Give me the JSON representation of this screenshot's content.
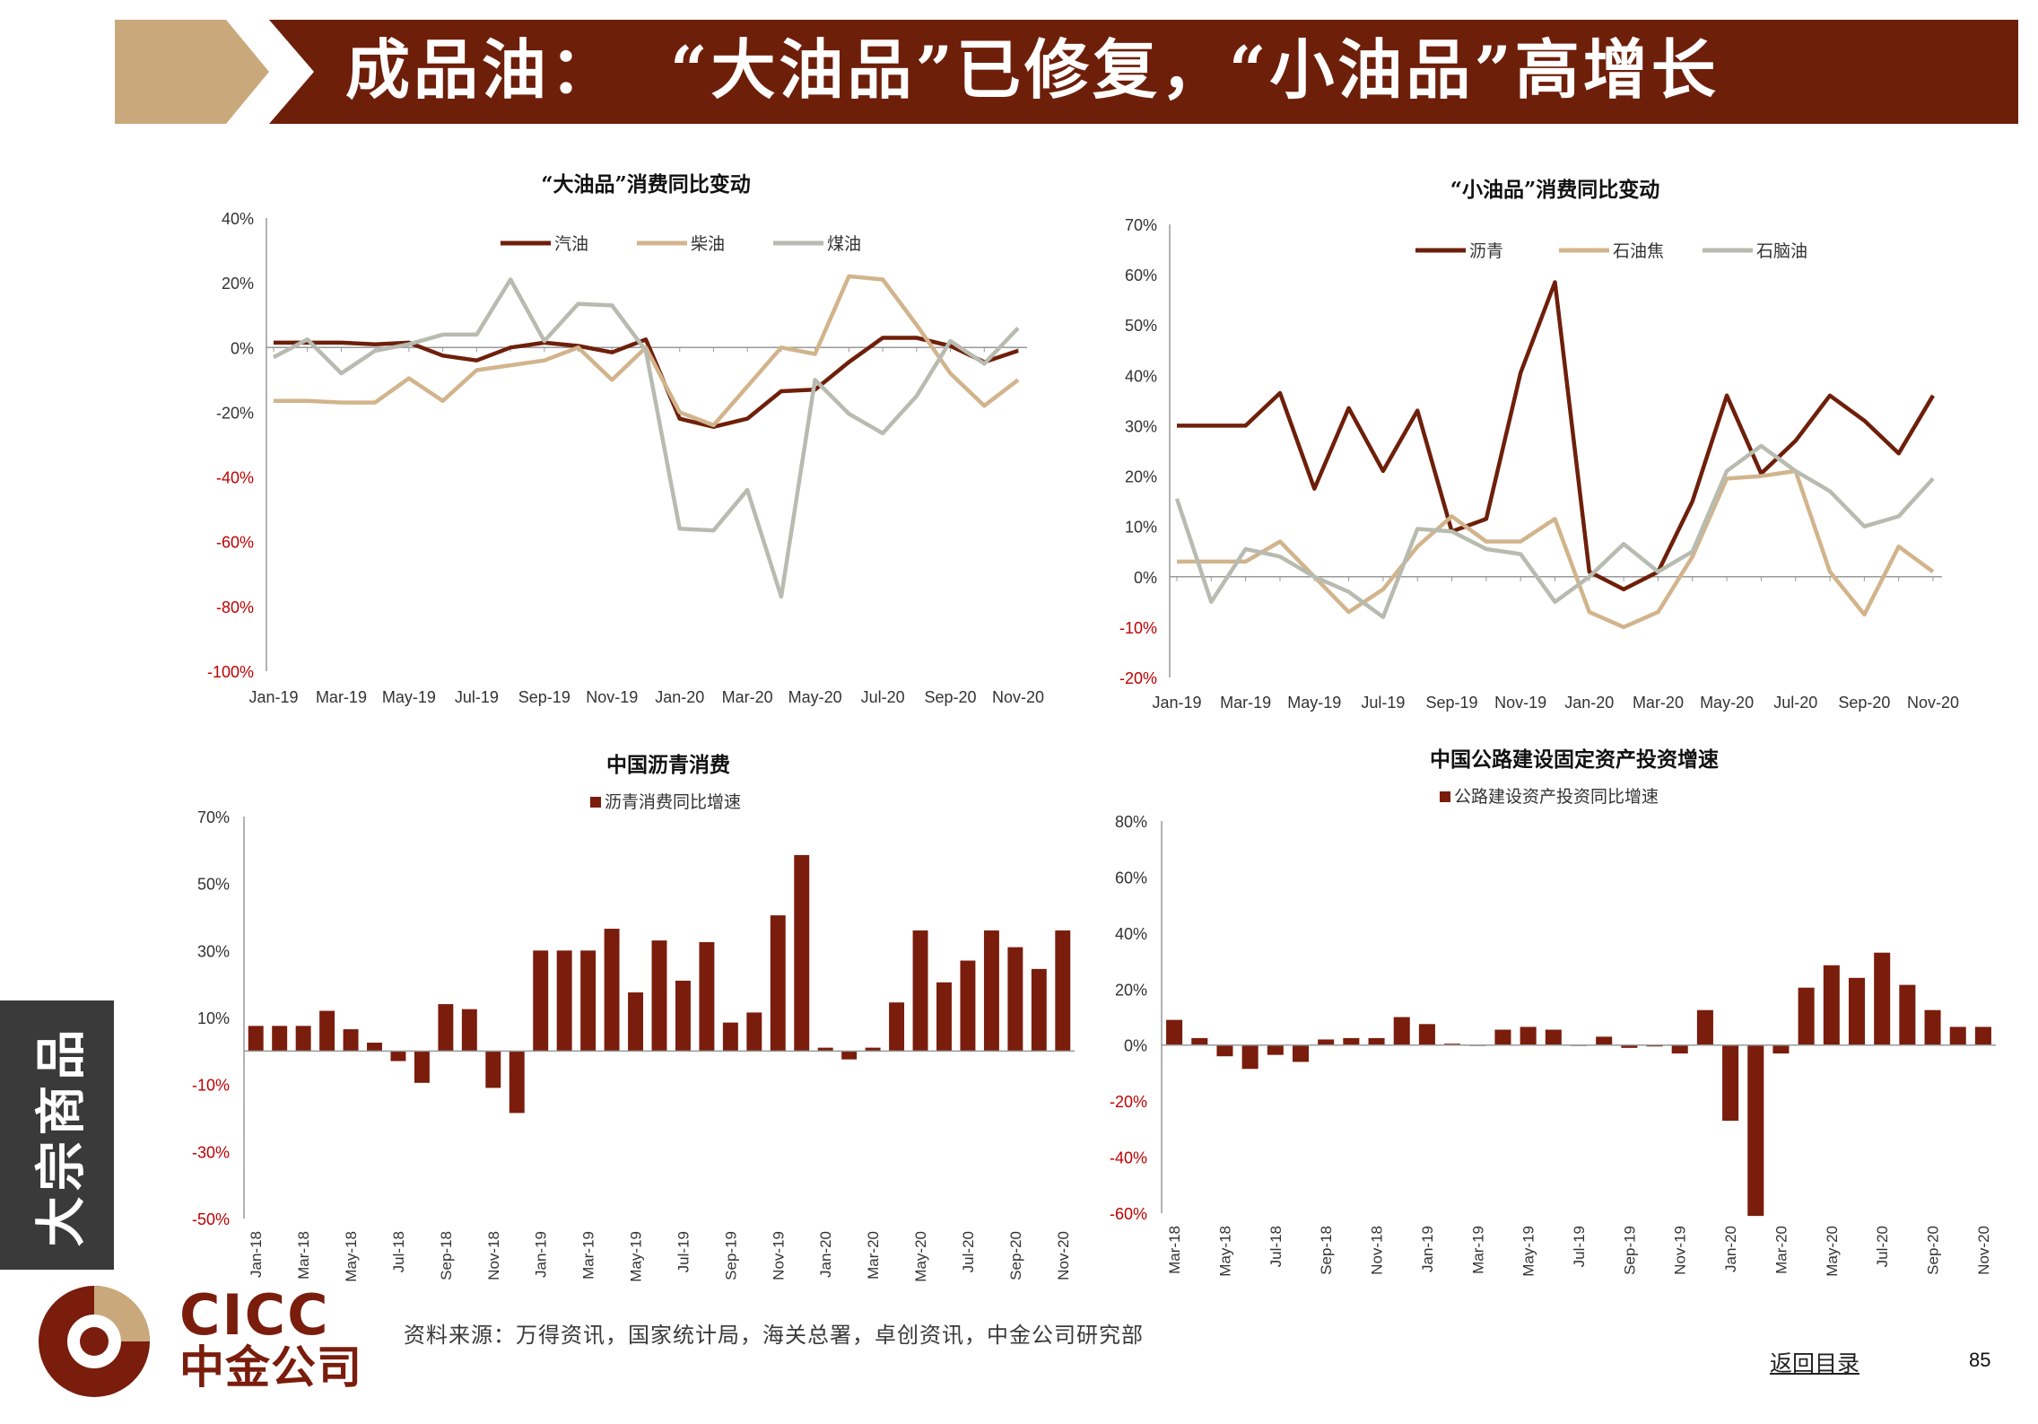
{
  "header": {
    "title": "成品油：  “大油品”已修复，“小油品”高增长"
  },
  "colors": {
    "banner": "#6e1f0a",
    "chevron": "#c9a97b",
    "gasoline": "#6e1f0a",
    "diesel": "#d2b48c",
    "jetfuel": "#b8bbb0",
    "bar": "#7a1d0d",
    "axis_red": "#c00000"
  },
  "side_tab": {
    "label": "大宗商品"
  },
  "footer": {
    "source": "资料来源：万得资讯，国家统计局，海关总署，卓创资讯，中金公司研究部",
    "back_link": "返回目录",
    "page_number": "85"
  },
  "logo": {
    "en": "CICC",
    "cn": "中金公司"
  },
  "chart_data": [
    {
      "type": "line",
      "title": "“大油品”消费同比变动",
      "xlabel": "",
      "ylabel": "",
      "ylim": [
        -100,
        40
      ],
      "yticks": [
        "40%",
        "20%",
        "0%",
        "-20%",
        "-40%",
        "-60%",
        "-80%",
        "-100%"
      ],
      "ytick_values": [
        40,
        20,
        0,
        -20,
        -40,
        -60,
        -80,
        -100
      ],
      "x": [
        "Jan-19",
        "Feb-19",
        "Mar-19",
        "Apr-19",
        "May-19",
        "Jun-19",
        "Jul-19",
        "Aug-19",
        "Sep-19",
        "Oct-19",
        "Nov-19",
        "Dec-19",
        "Jan-20",
        "Feb-20",
        "Mar-20",
        "Apr-20",
        "May-20",
        "Jun-20",
        "Jul-20",
        "Aug-20",
        "Sep-20",
        "Oct-20",
        "Nov-20"
      ],
      "xtick_labels": [
        "Jan-19",
        "Mar-19",
        "May-19",
        "Jul-19",
        "Sep-19",
        "Nov-19",
        "Jan-20",
        "Mar-20",
        "May-20",
        "Jul-20",
        "Sep-20",
        "Nov-20"
      ],
      "legend_position": "top",
      "grid": false,
      "series": [
        {
          "name": "汽油",
          "color": "#6e1f0a",
          "values": [
            1.5,
            1.5,
            1.5,
            1,
            1.5,
            -2.5,
            -4,
            0,
            1.5,
            0.5,
            -1.5,
            2.5,
            -22,
            -24.5,
            -22,
            -13.5,
            -13,
            -4.5,
            3,
            3,
            0.5,
            -4.5,
            -1
          ]
        },
        {
          "name": "柴油",
          "color": "#d2b48c",
          "values": [
            -16.5,
            -16.5,
            -17,
            -17,
            -9.5,
            -16.5,
            -7,
            -5.5,
            -4,
            0,
            -10,
            0,
            -20,
            -24,
            -12,
            0,
            -2,
            22,
            21,
            7,
            -8,
            -18,
            -10
          ]
        },
        {
          "name": "煤油",
          "color": "#b8bbb0",
          "values": [
            -3,
            2.5,
            -8,
            -1,
            1,
            4,
            4,
            21,
            2,
            13.5,
            13,
            -1,
            -56,
            -56.5,
            -44,
            -77,
            -10,
            -20.5,
            -26.5,
            -15,
            2,
            -5,
            6
          ]
        }
      ]
    },
    {
      "type": "line",
      "title": "“小油品”消费同比变动",
      "xlabel": "",
      "ylabel": "",
      "ylim": [
        -20,
        70
      ],
      "yticks": [
        "70%",
        "60%",
        "50%",
        "40%",
        "30%",
        "20%",
        "10%",
        "0%",
        "-10%",
        "-20%"
      ],
      "ytick_values": [
        70,
        60,
        50,
        40,
        30,
        20,
        10,
        0,
        -10,
        -20
      ],
      "x": [
        "Jan-19",
        "Feb-19",
        "Mar-19",
        "Apr-19",
        "May-19",
        "Jun-19",
        "Jul-19",
        "Aug-19",
        "Sep-19",
        "Oct-19",
        "Nov-19",
        "Dec-19",
        "Jan-20",
        "Feb-20",
        "Mar-20",
        "Apr-20",
        "May-20",
        "Jun-20",
        "Jul-20",
        "Aug-20",
        "Sep-20",
        "Oct-20",
        "Nov-20"
      ],
      "xtick_labels": [
        "Jan-19",
        "Mar-19",
        "May-19",
        "Jul-19",
        "Sep-19",
        "Nov-19",
        "Jan-20",
        "Mar-20",
        "May-20",
        "Jul-20",
        "Sep-20",
        "Nov-20"
      ],
      "legend_position": "top",
      "grid": false,
      "series": [
        {
          "name": "沥青",
          "color": "#6e1f0a",
          "values": [
            30,
            30,
            30,
            36.5,
            17.5,
            33.5,
            21,
            33,
            9,
            11.5,
            40.5,
            58.5,
            1,
            -2.5,
            1,
            15,
            36,
            20.5,
            27,
            36,
            31,
            24.5,
            36
          ]
        },
        {
          "name": "石油焦",
          "color": "#d2b48c",
          "values": [
            3,
            3,
            3,
            7,
            0,
            -7,
            -2.5,
            6,
            12,
            7,
            7,
            11.5,
            -7,
            -10,
            -7,
            4,
            19.5,
            20,
            21,
            1,
            -7.5,
            6,
            1
          ]
        },
        {
          "name": "石脑油",
          "color": "#b8bbb0",
          "values": [
            15.5,
            -5,
            5.5,
            4,
            0,
            -3,
            -8,
            9.5,
            9,
            5.5,
            4.5,
            -5,
            0,
            6.5,
            1,
            5,
            21,
            26,
            21,
            17,
            10,
            12,
            19.5
          ]
        }
      ]
    },
    {
      "type": "bar",
      "title": "中国沥青消费",
      "legend": "沥青消费同比增速",
      "xlabel": "",
      "ylabel": "",
      "ylim": [
        -50,
        70
      ],
      "yticks": [
        "70%",
        "50%",
        "30%",
        "10%",
        "-10%",
        "-30%",
        "-50%"
      ],
      "ytick_values": [
        70,
        50,
        30,
        10,
        -10,
        -30,
        -50
      ],
      "categories": [
        "Jan-18",
        "Feb-18",
        "Mar-18",
        "Apr-18",
        "May-18",
        "Jun-18",
        "Jul-18",
        "Aug-18",
        "Sep-18",
        "Oct-18",
        "Nov-18",
        "Dec-18",
        "Jan-19",
        "Feb-19",
        "Mar-19",
        "Apr-19",
        "May-19",
        "Jun-19",
        "Jul-19",
        "Aug-19",
        "Sep-19",
        "Oct-19",
        "Nov-19",
        "Dec-19",
        "Jan-20",
        "Feb-20",
        "Mar-20",
        "Apr-20",
        "May-20",
        "Jun-20",
        "Jul-20",
        "Aug-20",
        "Sep-20",
        "Oct-20",
        "Nov-20"
      ],
      "xtick_labels": [
        "Jan-18",
        "Mar-18",
        "May-18",
        "Jul-18",
        "Sep-18",
        "Nov-18",
        "Jan-19",
        "Mar-19",
        "May-19",
        "Jul-19",
        "Sep-19",
        "Nov-19",
        "Jan-20",
        "Mar-20",
        "May-20",
        "Jul-20",
        "Sep-20",
        "Nov-20"
      ],
      "values": [
        7.5,
        7.5,
        7.5,
        12,
        6.5,
        2.5,
        -3,
        -9.5,
        14,
        12.5,
        -11,
        -18.5,
        30,
        30,
        30,
        36.5,
        17.5,
        33,
        21,
        32.5,
        8.5,
        11.5,
        40.5,
        58.5,
        1,
        -2.5,
        1,
        14.5,
        36,
        20.5,
        27,
        36,
        31,
        24.5,
        36
      ],
      "color": "#7a1d0d",
      "grid": false
    },
    {
      "type": "bar",
      "title": "中国公路建设固定资产投资增速",
      "legend": "公路建设资产投资同比增速",
      "xlabel": "",
      "ylabel": "",
      "ylim": [
        -60,
        80
      ],
      "yticks": [
        "80%",
        "60%",
        "40%",
        "20%",
        "0%",
        "-20%",
        "-40%",
        "-60%"
      ],
      "ytick_values": [
        80,
        60,
        40,
        20,
        0,
        -20,
        -40,
        -60
      ],
      "categories": [
        "Mar-18",
        "Apr-18",
        "May-18",
        "Jun-18",
        "Jul-18",
        "Aug-18",
        "Sep-18",
        "Oct-18",
        "Nov-18",
        "Dec-18",
        "Jan-19",
        "Feb-19",
        "Mar-19",
        "Apr-19",
        "May-19",
        "Jun-19",
        "Jul-19",
        "Aug-19",
        "Sep-19",
        "Oct-19",
        "Nov-19",
        "Dec-19",
        "Jan-20",
        "Feb-20",
        "Mar-20",
        "Apr-20",
        "May-20",
        "Jun-20",
        "Jul-20",
        "Aug-20",
        "Sep-20",
        "Oct-20",
        "Nov-20"
      ],
      "xtick_labels": [
        "Mar-18",
        "May-18",
        "Jul-18",
        "Sep-18",
        "Nov-18",
        "Jan-19",
        "Mar-19",
        "May-19",
        "Jul-19",
        "Sep-19",
        "Nov-19",
        "Jan-20",
        "Mar-20",
        "May-20",
        "Jul-20",
        "Sep-20",
        "Nov-20"
      ],
      "values": [
        9,
        2.5,
        -4,
        -8.5,
        -3.5,
        -6,
        2,
        2.5,
        2.5,
        10,
        7.5,
        0.5,
        0,
        5.5,
        6.5,
        5.5,
        0,
        3,
        -1,
        -0.5,
        -3,
        12.5,
        -27,
        -61,
        -3,
        20.5,
        28.5,
        24,
        33,
        21.5,
        12.5,
        6.5,
        6.5
      ],
      "color": "#7a1d0d",
      "grid": false
    }
  ]
}
